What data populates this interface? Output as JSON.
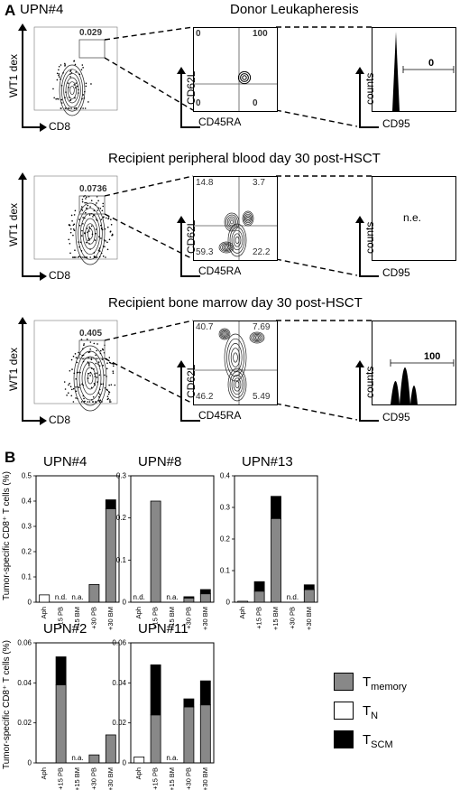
{
  "panel_a": {
    "letter": "A",
    "patient": "UPN#4",
    "rows": [
      {
        "title": "Donor Leukapheresis",
        "gate_value": "0.029",
        "quadrants": {
          "tl": "0",
          "tr": "100",
          "bl": "0",
          "br": "0"
        },
        "histogram_value": "0"
      },
      {
        "title": "Recipient peripheral blood day 30 post-HSCT",
        "gate_value": "0.0736",
        "quadrants": {
          "tl": "14.8",
          "tr": "3.7",
          "bl": "59.3",
          "br": "22.2"
        },
        "histogram_value": "n.e."
      },
      {
        "title": "Recipient bone marrow day 30 post-HSCT",
        "gate_value": "0.405",
        "quadrants": {
          "tl": "40.7",
          "tr": "7.69",
          "bl": "46.2",
          "br": "5.49"
        },
        "histogram_value": "100"
      }
    ],
    "axes": {
      "dot_y": "WT1 dex",
      "dot_x": "CD8",
      "quad_y": "CD62L",
      "quad_x": "CD45RA",
      "hist_y": "counts",
      "hist_x": "CD95"
    }
  },
  "panel_b": {
    "letter": "B",
    "ylabel": "Tumor-specific CD8⁺ T cells (%)",
    "legend": [
      {
        "label": "T",
        "sub": "memory",
        "color": "#888888"
      },
      {
        "label": "T",
        "sub": "N",
        "color": "#ffffff"
      },
      {
        "label": "T",
        "sub": "SCM",
        "color": "#000000"
      }
    ],
    "na": "n.a.",
    "nd": "n.d."
  },
  "chart_data": [
    {
      "type": "bar",
      "title": "UPN#4",
      "categories": [
        "Aph",
        "+15 PB",
        "+15 BM",
        "+30 PB",
        "+30 BM"
      ],
      "ylim": [
        0,
        0.5
      ],
      "yticks": [
        "0",
        "0.1",
        "0.2",
        "0.3",
        "0.4",
        "0.5"
      ],
      "series": [
        {
          "name": "T memory",
          "values": [
            0,
            0,
            0,
            0.07,
            0.37
          ]
        },
        {
          "name": "T N",
          "values": [
            0.029,
            0,
            0,
            0,
            0
          ]
        },
        {
          "name": "T SCM",
          "values": [
            0,
            0,
            0,
            0,
            0.035
          ]
        }
      ],
      "annotations": [
        "",
        "n.d.",
        "n.a.",
        "",
        ""
      ]
    },
    {
      "type": "bar",
      "title": "UPN#8",
      "categories": [
        "Aph",
        "+15 PB",
        "+15 BM",
        "+30 PB",
        "+30 BM"
      ],
      "ylim": [
        0,
        0.3
      ],
      "yticks": [
        "0",
        "0.1",
        "0.2",
        "0.3"
      ],
      "series": [
        {
          "name": "T memory",
          "values": [
            0,
            0.24,
            0,
            0.01,
            0.02
          ]
        },
        {
          "name": "T N",
          "values": [
            0,
            0,
            0,
            0,
            0
          ]
        },
        {
          "name": "T SCM",
          "values": [
            0,
            0,
            0,
            0.003,
            0.01
          ]
        }
      ],
      "annotations": [
        "n.d.",
        "",
        "n.a.",
        "",
        ""
      ]
    },
    {
      "type": "bar",
      "title": "UPN#13",
      "categories": [
        "Aph",
        "+15 PB",
        "+15 BM",
        "+30 PB",
        "+30 BM"
      ],
      "ylim": [
        0,
        0.4
      ],
      "yticks": [
        "0",
        "0.1",
        "0.2",
        "0.3",
        "0.4"
      ],
      "series": [
        {
          "name": "T memory",
          "values": [
            0,
            0.035,
            0.265,
            0,
            0.04
          ]
        },
        {
          "name": "T N",
          "values": [
            0.003,
            0,
            0,
            0,
            0
          ]
        },
        {
          "name": "T SCM",
          "values": [
            0,
            0.03,
            0.07,
            0,
            0.015
          ]
        }
      ],
      "annotations": [
        "",
        "",
        "",
        "n.d.",
        ""
      ]
    },
    {
      "type": "bar",
      "title": "UPN#2",
      "categories": [
        "Aph",
        "+15 PB",
        "+15 BM",
        "+30 PB",
        "+30 BM"
      ],
      "ylim": [
        0,
        0.06
      ],
      "yticks": [
        "0",
        "0.02",
        "0.04",
        "0.06"
      ],
      "series": [
        {
          "name": "T memory",
          "values": [
            0,
            0.039,
            0,
            0.004,
            0.014
          ]
        },
        {
          "name": "T N",
          "values": [
            0,
            0,
            0,
            0,
            0
          ]
        },
        {
          "name": "T SCM",
          "values": [
            0,
            0.014,
            0,
            0,
            0
          ]
        }
      ],
      "annotations": [
        "",
        "",
        "n.a.",
        "",
        ""
      ]
    },
    {
      "type": "bar",
      "title": "UPN#11",
      "categories": [
        "Aph",
        "+15 PB",
        "+15 BM",
        "+30 PB",
        "+30 BM"
      ],
      "ylim": [
        0,
        0.06
      ],
      "yticks": [
        "0",
        "0.02",
        "0.04",
        "0.06"
      ],
      "series": [
        {
          "name": "T memory",
          "values": [
            0,
            0.024,
            0,
            0.028,
            0.029
          ]
        },
        {
          "name": "T N",
          "values": [
            0.003,
            0,
            0,
            0,
            0
          ]
        },
        {
          "name": "T SCM",
          "values": [
            0,
            0.025,
            0,
            0.004,
            0.012
          ]
        }
      ],
      "annotations": [
        "",
        "",
        "n.a.",
        "",
        ""
      ]
    }
  ]
}
